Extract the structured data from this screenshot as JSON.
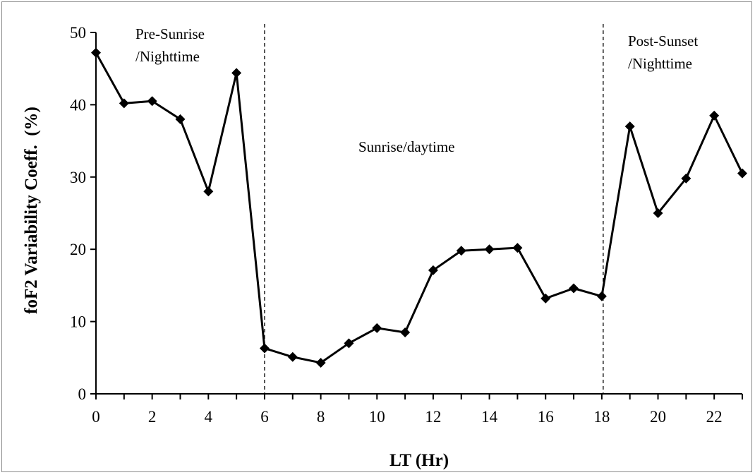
{
  "chart_data": {
    "type": "line",
    "xlabel": "LT (Hr)",
    "ylabel": "foF2 Variability Coeff.  (%)",
    "xlim": [
      0,
      23
    ],
    "ylim": [
      0,
      50
    ],
    "x_ticks": [
      0,
      2,
      4,
      6,
      8,
      10,
      12,
      14,
      16,
      18,
      20,
      22
    ],
    "y_ticks": [
      0,
      10,
      20,
      30,
      40,
      50
    ],
    "grid": false,
    "legend": "none",
    "series": [
      {
        "color": "#000000",
        "marker": "diamond",
        "x": [
          0,
          1,
          2,
          3,
          4,
          5,
          6,
          7,
          8,
          9,
          10,
          11,
          12,
          13,
          14,
          15,
          16,
          17,
          18,
          19,
          20,
          21,
          22,
          23
        ],
        "values": [
          47.2,
          40.2,
          40.5,
          38.0,
          28.0,
          44.4,
          6.3,
          5.1,
          4.3,
          7.0,
          9.1,
          8.5,
          17.1,
          19.8,
          20.0,
          20.2,
          13.2,
          14.6,
          13.5,
          37.0,
          25.0,
          29.8,
          38.5,
          30.5
        ]
      }
    ],
    "vertical_lines": [
      6.0,
      18.05
    ],
    "annotations": [
      {
        "id": "pre-sunrise",
        "lines": [
          "Pre-Sunrise",
          "/Nighttime"
        ]
      },
      {
        "id": "sunrise",
        "lines": [
          "Sunrise/daytime"
        ]
      },
      {
        "id": "post-sunset",
        "lines": [
          "Post-Sunset",
          "/Nighttime"
        ]
      }
    ]
  }
}
